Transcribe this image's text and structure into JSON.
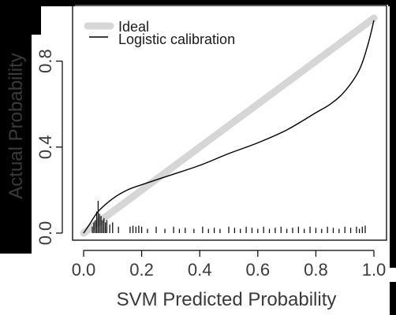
{
  "chart_data": {
    "type": "line",
    "xlabel": "SVM Predicted Probability",
    "ylabel": "Actual Probability",
    "xlim": [
      0,
      1
    ],
    "ylim": [
      0,
      1
    ],
    "xticks": [
      {
        "value": 0.0,
        "label": "0.0"
      },
      {
        "value": 0.2,
        "label": "0.2"
      },
      {
        "value": 0.4,
        "label": "0.4"
      },
      {
        "value": 0.6,
        "label": "0.6"
      },
      {
        "value": 0.8,
        "label": "0.8"
      },
      {
        "value": 1.0,
        "label": "1.0"
      }
    ],
    "yticks": [
      {
        "value": 0.0,
        "label": "0.0"
      },
      {
        "value": 0.4,
        "label": "0.4"
      },
      {
        "value": 0.8,
        "label": "0.8"
      }
    ],
    "legend": {
      "position": "top-left",
      "entries": [
        {
          "label": "Ideal",
          "color": "#d6d6d6",
          "style": "thick"
        },
        {
          "label": "Logistic calibration",
          "color": "#000000",
          "style": "thin"
        }
      ]
    },
    "series": [
      {
        "name": "Ideal",
        "color": "#d6d6d6",
        "x": [
          0,
          1
        ],
        "y": [
          0,
          1
        ]
      },
      {
        "name": "Logistic calibration",
        "color": "#000000",
        "x": [
          0.0,
          0.02,
          0.05,
          0.1,
          0.15,
          0.2,
          0.3,
          0.4,
          0.5,
          0.6,
          0.7,
          0.8,
          0.85,
          0.9,
          0.95,
          0.98,
          1.0
        ],
        "y": [
          0.0,
          0.04,
          0.1,
          0.16,
          0.2,
          0.225,
          0.27,
          0.315,
          0.37,
          0.42,
          0.48,
          0.56,
          0.6,
          0.66,
          0.76,
          0.88,
          0.99
        ]
      }
    ],
    "rug": {
      "color": "#000000",
      "x": [
        0.03,
        0.035,
        0.04,
        0.045,
        0.05,
        0.055,
        0.06,
        0.065,
        0.07,
        0.075,
        0.08,
        0.09,
        0.1,
        0.12,
        0.16,
        0.17,
        0.18,
        0.19,
        0.2,
        0.22,
        0.25,
        0.28,
        0.31,
        0.33,
        0.35,
        0.38,
        0.41,
        0.43,
        0.45,
        0.47,
        0.5,
        0.52,
        0.54,
        0.56,
        0.58,
        0.6,
        0.62,
        0.64,
        0.66,
        0.68,
        0.7,
        0.72,
        0.74,
        0.76,
        0.78,
        0.8,
        0.82,
        0.84,
        0.86,
        0.88,
        0.9,
        0.92,
        0.94,
        0.95,
        0.96,
        0.97
      ],
      "y": [
        0.03,
        0.05,
        0.06,
        0.1,
        0.15,
        0.09,
        0.08,
        0.06,
        0.07,
        0.05,
        0.06,
        0.04,
        0.05,
        0.03,
        0.03,
        0.035,
        0.03,
        0.035,
        0.03,
        0.02,
        0.03,
        0.02,
        0.03,
        0.02,
        0.025,
        0.02,
        0.03,
        0.02,
        0.025,
        0.02,
        0.03,
        0.025,
        0.02,
        0.03,
        0.025,
        0.02,
        0.03,
        0.02,
        0.025,
        0.03,
        0.02,
        0.025,
        0.03,
        0.02,
        0.03,
        0.025,
        0.02,
        0.03,
        0.025,
        0.02,
        0.03,
        0.025,
        0.03,
        0.02,
        0.03,
        0.035
      ]
    }
  }
}
